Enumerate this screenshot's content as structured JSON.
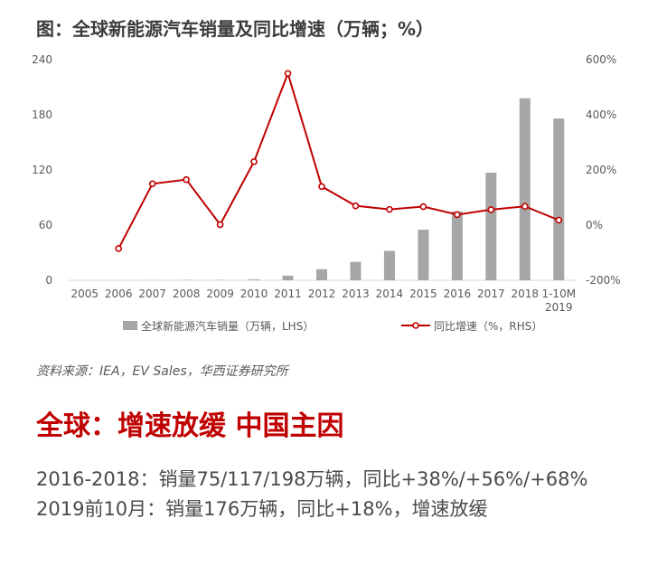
{
  "figure_title": "图：全球新能源汽车销量及同比增速（万辆；%）",
  "source_note": "资料来源：IEA，EV Sales，华西证券研究所",
  "headline": "全球：增速放缓 中国主因",
  "text_line_1": "2016-2018：销量75/117/198万辆，同比+38%/+56%/+68%",
  "text_line_2": "2019前10月：销量176万辆，同比+18%，增速放缓",
  "colors": {
    "bar": "#a6a6a6",
    "line": "#c00000",
    "axis_text": "#595959"
  },
  "chart_data": {
    "type": "bar+line",
    "categories": [
      "2005",
      "2006",
      "2007",
      "2008",
      "2009",
      "2010",
      "2011",
      "2012",
      "2013",
      "2014",
      "2015",
      "2016",
      "2017",
      "2018",
      "1-10M\n2019"
    ],
    "series": [
      {
        "name": "全球新能源汽车销量（万辆，LHS）",
        "type": "bar",
        "axis": "left",
        "values": [
          0,
          0,
          0.2,
          0.3,
          0.3,
          1,
          5,
          12,
          20,
          32,
          55,
          75,
          117,
          198,
          176
        ]
      },
      {
        "name": "同比增速（%，RHS）",
        "type": "line",
        "axis": "right",
        "values": [
          null,
          -85,
          150,
          165,
          2,
          230,
          550,
          140,
          70,
          57,
          67,
          38,
          56,
          68,
          18
        ]
      }
    ],
    "left_axis": {
      "ticks": [
        0,
        60,
        120,
        180,
        240
      ],
      "ylim": [
        0,
        240
      ]
    },
    "right_axis": {
      "ticks": [
        "-200%",
        "0%",
        "200%",
        "400%",
        "600%"
      ],
      "ylim": [
        -200,
        600
      ]
    },
    "legend_position": "bottom"
  }
}
